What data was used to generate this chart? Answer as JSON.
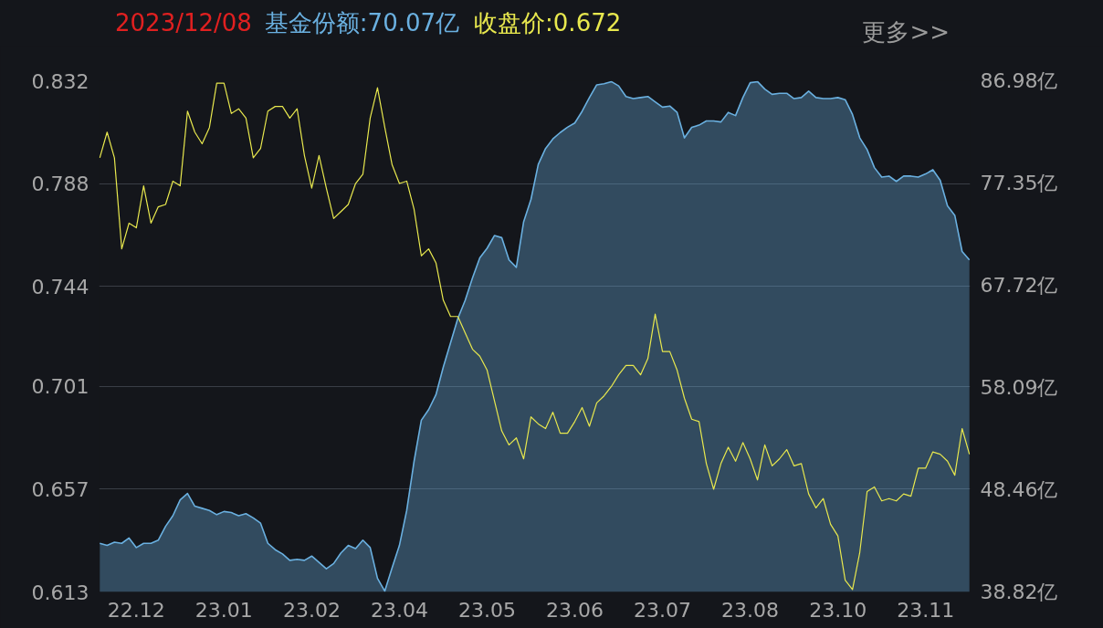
{
  "chart_data": {
    "type": "line",
    "title": "2023/12/08",
    "annotations": [
      "更多>>"
    ],
    "categories": [
      null,
      null,
      null,
      null,
      null,
      "22.12",
      null,
      null,
      null,
      null,
      null,
      null,
      null,
      null,
      null,
      null,
      null,
      "23.01",
      null,
      null,
      null,
      null,
      null,
      null,
      null,
      null,
      null,
      null,
      null,
      "23.02",
      null,
      null,
      null,
      null,
      null,
      null,
      null,
      null,
      null,
      null,
      null,
      "23.04",
      null,
      null,
      null,
      null,
      null,
      null,
      null,
      null,
      null,
      null,
      null,
      "23.05",
      null,
      null,
      null,
      null,
      null,
      null,
      null,
      null,
      null,
      null,
      null,
      "23.06",
      null,
      null,
      null,
      null,
      null,
      null,
      null,
      null,
      null,
      null,
      null,
      "23.07",
      null,
      null,
      null,
      null,
      null,
      null,
      null,
      null,
      null,
      null,
      null,
      "23.08",
      null,
      null,
      null,
      null,
      null,
      null,
      null,
      null,
      null,
      null,
      null,
      "23.10",
      null,
      null,
      null,
      null,
      null,
      null,
      null,
      null,
      null,
      null,
      null,
      "23.11",
      null,
      null,
      null,
      null,
      null,
      null
    ],
    "ylim": [
      0.613,
      0.832
    ],
    "yticks": [
      0.613,
      0.657,
      0.701,
      0.744,
      0.788,
      0.832
    ],
    "y2lim": [
      38.82,
      86.98
    ],
    "y2ticks": [
      {
        "value": 38.82,
        "label": "38.82亿"
      },
      {
        "value": 48.46,
        "label": "48.46亿"
      },
      {
        "value": 58.09,
        "label": "58.09亿"
      },
      {
        "value": 67.72,
        "label": "67.72亿"
      },
      {
        "value": 77.35,
        "label": "77.35亿"
      },
      {
        "value": 86.98,
        "label": "86.98亿"
      }
    ],
    "grid": "y",
    "series": [
      {
        "name": "基金份额:70.07亿",
        "type": "area",
        "axis": "y2",
        "color": "#6ab0e0",
        "values": [
          43.4,
          43.2,
          43.5,
          43.4,
          43.9,
          43.0,
          43.4,
          43.4,
          43.7,
          45.0,
          46.0,
          47.5,
          48.1,
          46.9,
          46.7,
          46.5,
          46.1,
          46.4,
          46.3,
          46.0,
          46.2,
          45.8,
          45.3,
          43.4,
          42.8,
          42.4,
          41.8,
          41.9,
          41.8,
          42.2,
          41.6,
          41.0,
          41.5,
          42.5,
          43.2,
          42.9,
          43.7,
          43.0,
          40.1,
          38.9,
          41.1,
          43.2,
          46.5,
          51.1,
          55.0,
          56.0,
          57.4,
          60.0,
          62.3,
          64.6,
          66.3,
          68.4,
          70.3,
          71.2,
          72.4,
          72.2,
          70.1,
          69.4,
          73.7,
          75.8,
          79.1,
          80.6,
          81.5,
          82.1,
          82.6,
          83.0,
          84.1,
          85.4,
          86.6,
          86.7,
          86.9,
          86.5,
          85.5,
          85.3,
          85.4,
          85.5,
          85.0,
          84.5,
          84.6,
          84.0,
          81.6,
          82.6,
          82.8,
          83.2,
          83.2,
          83.1,
          84.0,
          83.7,
          85.4,
          86.8,
          86.9,
          86.2,
          85.7,
          85.8,
          85.8,
          85.3,
          85.4,
          86.0,
          85.4,
          85.3,
          85.3,
          85.4,
          85.2,
          83.8,
          81.6,
          80.5,
          78.8,
          77.9,
          78.0,
          77.5,
          78.0,
          78.0,
          77.9,
          78.2,
          78.6,
          77.6,
          75.2,
          74.3,
          70.9,
          70.1
        ]
      },
      {
        "name": "收盘价:0.672",
        "color": "#e8e84e",
        "values": [
          0.799,
          0.81,
          0.799,
          0.76,
          0.771,
          0.769,
          0.787,
          0.771,
          0.778,
          0.779,
          0.789,
          0.787,
          0.819,
          0.81,
          0.805,
          0.812,
          0.831,
          0.831,
          0.818,
          0.82,
          0.816,
          0.799,
          0.803,
          0.819,
          0.821,
          0.821,
          0.816,
          0.82,
          0.8,
          0.786,
          0.8,
          0.786,
          0.773,
          0.776,
          0.779,
          0.788,
          0.792,
          0.816,
          0.829,
          0.812,
          0.796,
          0.788,
          0.789,
          0.777,
          0.757,
          0.76,
          0.754,
          0.738,
          0.731,
          0.731,
          0.724,
          0.717,
          0.714,
          0.708,
          0.695,
          0.682,
          0.676,
          0.679,
          0.67,
          0.688,
          0.685,
          0.683,
          0.69,
          0.681,
          0.681,
          0.686,
          0.692,
          0.684,
          0.694,
          0.697,
          0.701,
          0.706,
          0.71,
          0.71,
          0.706,
          0.713,
          0.732,
          0.716,
          0.716,
          0.708,
          0.696,
          0.687,
          0.686,
          0.668,
          0.657,
          0.668,
          0.675,
          0.669,
          0.677,
          0.67,
          0.661,
          0.676,
          0.667,
          0.67,
          0.674,
          0.667,
          0.668,
          0.655,
          0.649,
          0.653,
          0.642,
          0.637,
          0.618,
          0.614,
          0.63,
          0.656,
          0.658,
          0.652,
          0.653,
          0.652,
          0.655,
          0.654,
          0.666,
          0.666,
          0.673,
          0.672,
          0.669,
          0.663,
          0.683,
          0.672
        ]
      }
    ]
  }
}
